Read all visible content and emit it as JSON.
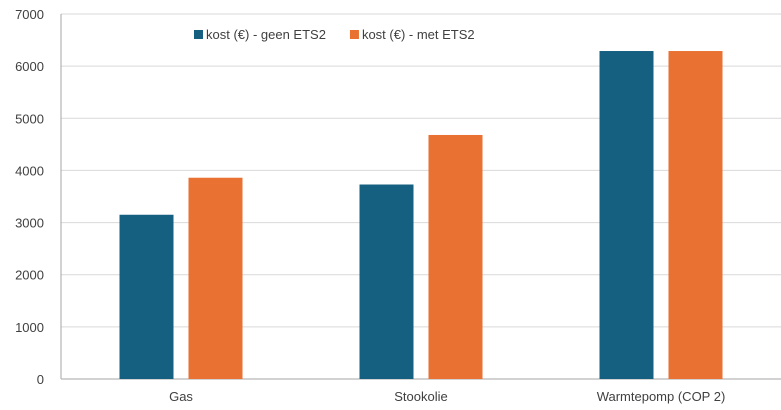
{
  "chart_data": {
    "type": "bar",
    "title": "",
    "xlabel": "",
    "ylabel": "",
    "categories": [
      "Gas",
      "Stookolie",
      "Warmtepomp (COP 2)"
    ],
    "series": [
      {
        "name": "kost (€) - geen ETS2",
        "color": "#155f81",
        "values": [
          3150,
          3730,
          6290
        ]
      },
      {
        "name": "kost (€) - met ETS2",
        "color": "#e97132",
        "values": [
          3860,
          4680,
          6290
        ]
      }
    ],
    "ylim": [
      0,
      7000
    ],
    "yticks": [
      0,
      1000,
      2000,
      3000,
      4000,
      5000,
      6000,
      7000
    ],
    "grid": true,
    "legend_position": "top"
  }
}
